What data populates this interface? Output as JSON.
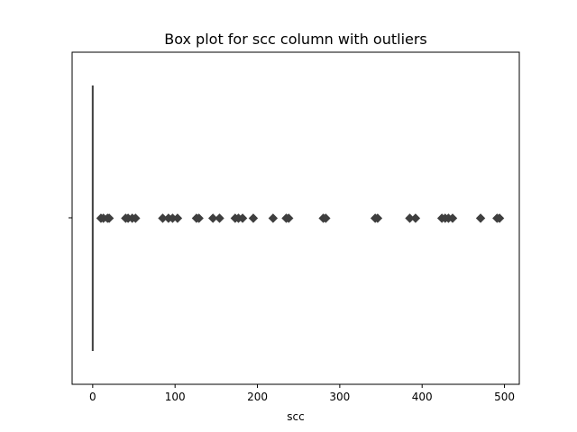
{
  "chart_data": {
    "type": "box",
    "title": "Box plot for scc column with outliers",
    "xlabel": "scc",
    "ylabel": "",
    "xlim": [
      -25,
      518
    ],
    "x_ticks": [
      0,
      100,
      200,
      300,
      400,
      500
    ],
    "orientation": "horizontal",
    "box": {
      "min": 0,
      "q1": 0,
      "median": 0,
      "q3": 0,
      "max": 0
    },
    "outliers": [
      10,
      13,
      18,
      20,
      40,
      43,
      48,
      52,
      85,
      92,
      97,
      103,
      126,
      129,
      146,
      154,
      173,
      177,
      182,
      195,
      219,
      235,
      238,
      280,
      283,
      343,
      346,
      385,
      392,
      424,
      428,
      432,
      437,
      471,
      491,
      494
    ],
    "colors": {
      "axes": "#000000",
      "box": "#3f3f3f",
      "outlier": "#3f3f3f",
      "background": "#ffffff"
    }
  }
}
